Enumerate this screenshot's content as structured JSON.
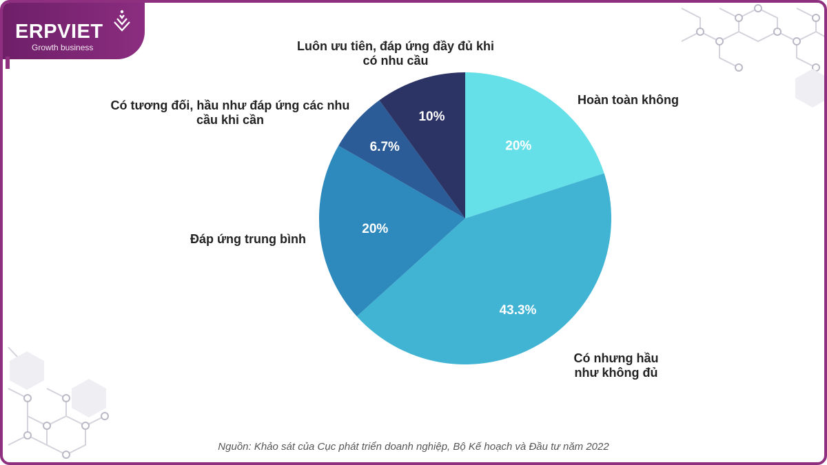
{
  "brand": {
    "name": "ERPVIET",
    "tagline": "Growth business"
  },
  "source_note": "Nguồn: Khảo sát của Cục phát triển doanh nghiệp, Bộ Kế hoạch và Đầu tư năm 2022",
  "colors": {
    "frame": "#8e2f7f",
    "deco": "#c8c8d2"
  },
  "chart_data": {
    "type": "pie",
    "start_angle_deg": 0,
    "direction": "clockwise",
    "slices": [
      {
        "label": "Hoàn toàn không",
        "value": 20,
        "value_label": "20%",
        "color": "#66e0e8"
      },
      {
        "label": "Có nhưng hầu như không đủ",
        "value": 43.3,
        "value_label": "43.3%",
        "color": "#41b4d4"
      },
      {
        "label": "Đáp ứng trung bình",
        "value": 20,
        "value_label": "20%",
        "color": "#2e8abd"
      },
      {
        "label": "Có tương đối, hầu như đáp ứng các nhu cầu khi cần",
        "value": 6.7,
        "value_label": "6.7%",
        "color": "#2b5c98"
      },
      {
        "label": "Luôn ưu tiên, đáp ứng đầy đủ khi có nhu cầu",
        "value": 10,
        "value_label": "10%",
        "color": "#2c3466"
      }
    ]
  }
}
